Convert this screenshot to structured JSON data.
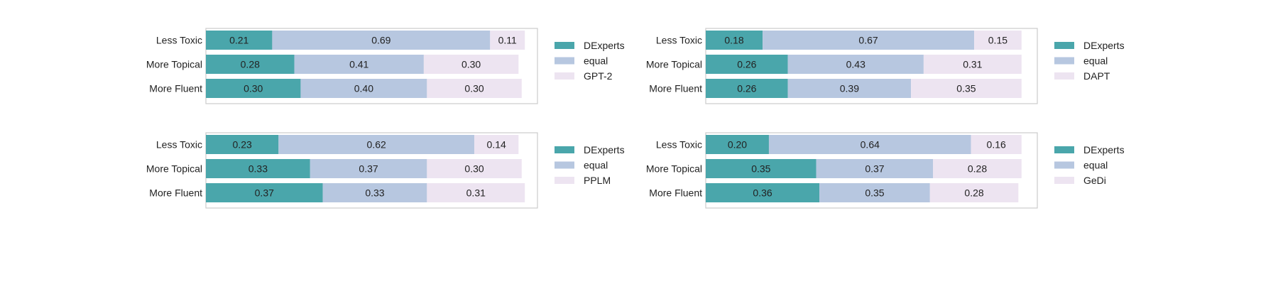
{
  "chart_data": [
    {
      "type": "bar",
      "orientation": "horizontal",
      "stacked": true,
      "categories": [
        "Less Toxic",
        "More Topical",
        "More Fluent"
      ],
      "series": [
        {
          "name": "DExperts",
          "values": [
            0.21,
            0.28,
            0.3
          ],
          "color": "#4aa6ab"
        },
        {
          "name": "equal",
          "values": [
            0.69,
            0.41,
            0.4
          ],
          "color": "#b7c7e0"
        },
        {
          "name": "GPT-2",
          "values": [
            0.11,
            0.3,
            0.3
          ],
          "color": "#ede4f1"
        }
      ],
      "xlim": [
        0,
        1.05
      ],
      "legend": "right",
      "grid": false
    },
    {
      "type": "bar",
      "orientation": "horizontal",
      "stacked": true,
      "categories": [
        "Less Toxic",
        "More Topical",
        "More Fluent"
      ],
      "series": [
        {
          "name": "DExperts",
          "values": [
            0.18,
            0.26,
            0.26
          ],
          "color": "#4aa6ab"
        },
        {
          "name": "equal",
          "values": [
            0.67,
            0.43,
            0.39
          ],
          "color": "#b7c7e0"
        },
        {
          "name": "DAPT",
          "values": [
            0.15,
            0.31,
            0.35
          ],
          "color": "#ede4f1"
        }
      ],
      "xlim": [
        0,
        1.05
      ],
      "legend": "right",
      "grid": false
    },
    {
      "type": "bar",
      "orientation": "horizontal",
      "stacked": true,
      "categories": [
        "Less Toxic",
        "More Topical",
        "More Fluent"
      ],
      "series": [
        {
          "name": "DExperts",
          "values": [
            0.23,
            0.33,
            0.37
          ],
          "color": "#4aa6ab"
        },
        {
          "name": "equal",
          "values": [
            0.62,
            0.37,
            0.33
          ],
          "color": "#b7c7e0"
        },
        {
          "name": "PPLM",
          "values": [
            0.14,
            0.3,
            0.31
          ],
          "color": "#ede4f1"
        }
      ],
      "xlim": [
        0,
        1.05
      ],
      "legend": "right",
      "grid": false
    },
    {
      "type": "bar",
      "orientation": "horizontal",
      "stacked": true,
      "categories": [
        "Less Toxic",
        "More Topical",
        "More Fluent"
      ],
      "series": [
        {
          "name": "DExperts",
          "values": [
            0.2,
            0.35,
            0.36
          ],
          "color": "#4aa6ab"
        },
        {
          "name": "equal",
          "values": [
            0.64,
            0.37,
            0.35
          ],
          "color": "#b7c7e0"
        },
        {
          "name": "GeDi",
          "values": [
            0.16,
            0.28,
            0.28
          ],
          "color": "#ede4f1"
        }
      ],
      "xlim": [
        0,
        1.05
      ],
      "legend": "right",
      "grid": false
    }
  ]
}
